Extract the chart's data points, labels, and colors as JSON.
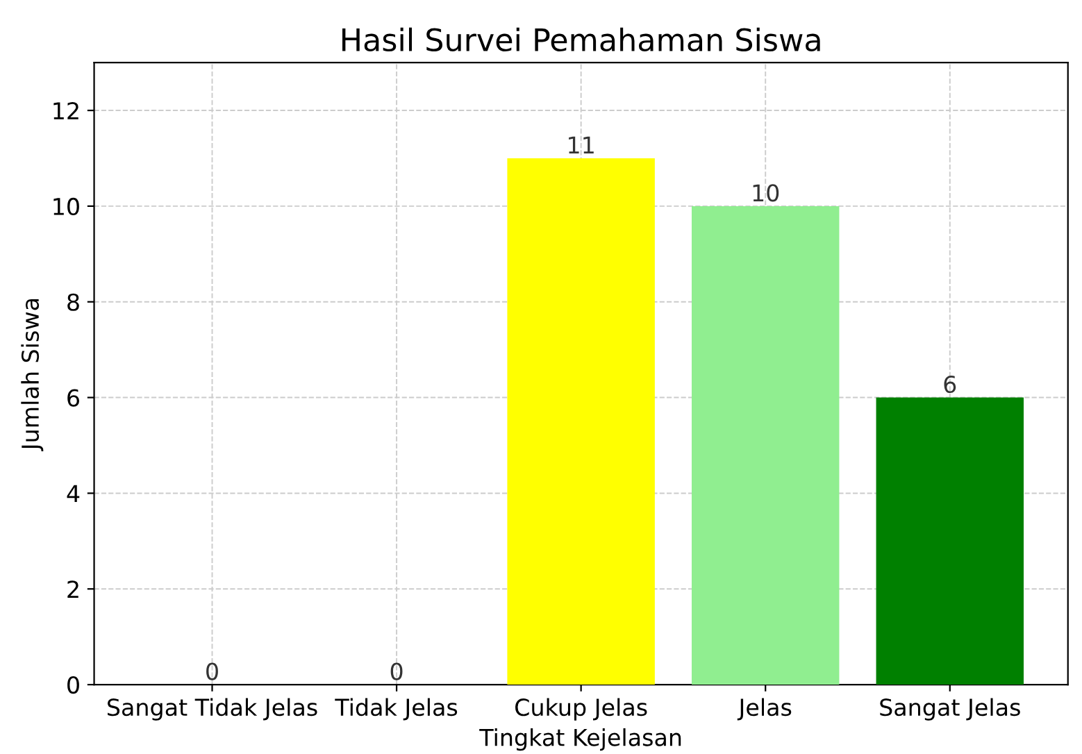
{
  "chart_data": {
    "type": "bar",
    "title": "Hasil Survei Pemahaman Siswa",
    "xlabel": "Tingkat Kejelasan",
    "ylabel": "Jumlah Siswa",
    "categories": [
      "Sangat Tidak Jelas",
      "Tidak Jelas",
      "Cukup Jelas",
      "Jelas",
      "Sangat Jelas"
    ],
    "values": [
      0,
      0,
      11,
      10,
      6
    ],
    "colors": [
      "#ff0000",
      "#ffa500",
      "#ffff00",
      "#90ee90",
      "#008000"
    ],
    "ylim": [
      0,
      13
    ],
    "yticks": [
      0,
      2,
      4,
      6,
      8,
      10,
      12
    ],
    "grid": true,
    "data_labels": true
  }
}
